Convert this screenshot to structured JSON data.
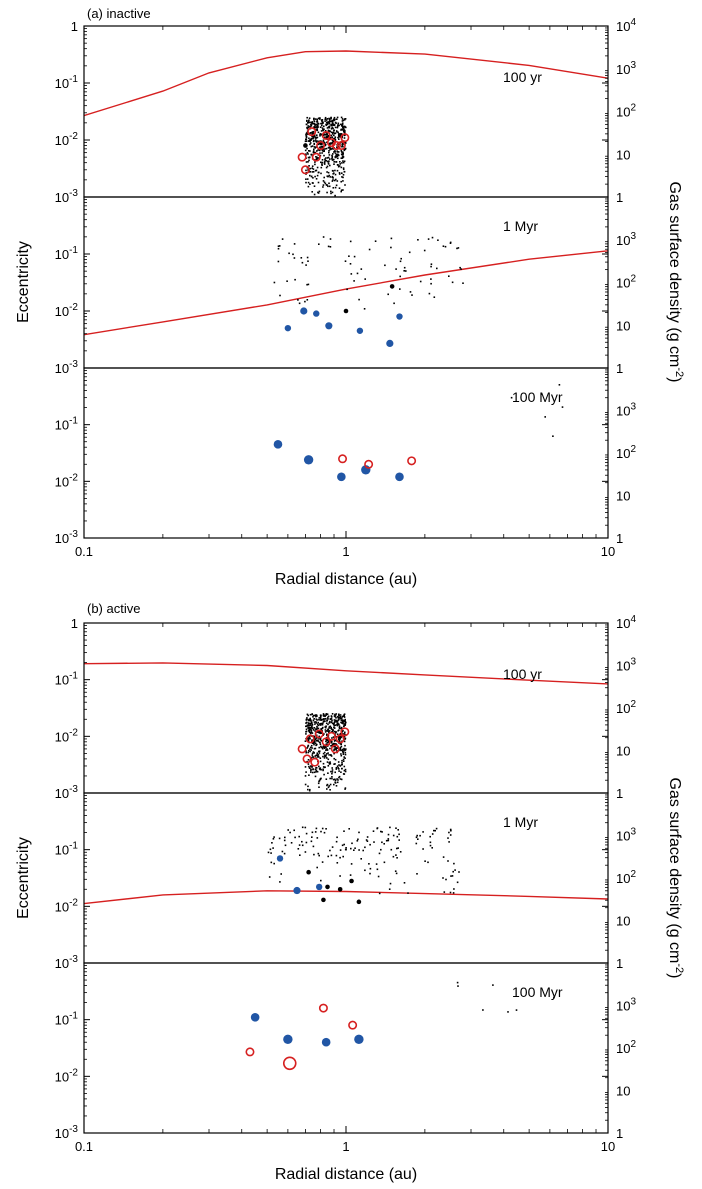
{
  "colors": {
    "gas_line": "#d62020",
    "blue_dot": "#2156a5",
    "red_ring": "#d62020",
    "particle": "#000000"
  },
  "axes_text": {
    "ylabel_left": "Eccentricity",
    "ylabel_right": "Gas surface density (g cm",
    "ylabel_right_sup": "-2",
    "ylabel_right_end": ")",
    "xlabel": "Radial distance (au)",
    "x_ticks": [
      "0.1",
      "1",
      "10"
    ],
    "y_ticks_left": [
      {
        "base": "10",
        "exp": "-3"
      },
      {
        "base": "10",
        "exp": "-2"
      },
      {
        "base": "10",
        "exp": "-1"
      },
      {
        "base": "1",
        "exp": ""
      }
    ],
    "y_ticks_right": [
      {
        "base": "1",
        "exp": ""
      },
      {
        "base": "10",
        "exp": ""
      },
      {
        "base": "10",
        "exp": "2"
      },
      {
        "base": "10",
        "exp": "3"
      },
      {
        "base": "10",
        "exp": "4"
      }
    ]
  },
  "chart_data": [
    {
      "type": "scatter",
      "title": "(a) inactive",
      "xlabel": "Radial distance (au)",
      "ylabel": "Eccentricity",
      "ylabel_right": "Gas surface density (g cm-2)",
      "x_scale": "log",
      "xlim": [
        0.1,
        10
      ],
      "y_scale": "log",
      "ylim": [
        0.001,
        1
      ],
      "y2_scale": "log",
      "y2lim": [
        1,
        10000
      ],
      "panels": [
        {
          "label": "100 yr",
          "gas": [
            [
              0.1,
              80
            ],
            [
              0.2,
              300
            ],
            [
              0.3,
              800
            ],
            [
              0.5,
              1800
            ],
            [
              0.7,
              2500
            ],
            [
              1.0,
              2600
            ],
            [
              2.0,
              2200
            ],
            [
              5.0,
              1200
            ],
            [
              10.0,
              600
            ]
          ],
          "planetesimals": {
            "count": 600,
            "r_range": [
              0.7,
              1.0
            ],
            "e_range": [
              0.001,
              0.025
            ]
          },
          "small_planetesimals": [
            [
              0.7,
              0.008
            ],
            [
              0.75,
              0.012
            ],
            [
              0.8,
              0.009
            ],
            [
              0.85,
              0.011
            ],
            [
              0.9,
              0.01
            ],
            [
              0.95,
              0.012
            ],
            [
              0.98,
              0.009
            ]
          ],
          "protoplanets_gas": [],
          "protoplanets_nogas": [
            [
              0.68,
              0.005
            ],
            [
              0.7,
              0.003
            ],
            [
              0.74,
              0.014
            ],
            [
              0.77,
              0.005
            ],
            [
              0.8,
              0.008
            ],
            [
              0.84,
              0.012
            ],
            [
              0.88,
              0.009
            ],
            [
              0.92,
              0.008
            ],
            [
              0.96,
              0.008
            ],
            [
              0.99,
              0.011
            ]
          ]
        },
        {
          "label": "1 Myr",
          "gas": [
            [
              0.1,
              6
            ],
            [
              0.2,
              12
            ],
            [
              0.5,
              30
            ],
            [
              1.0,
              70
            ],
            [
              2.0,
              150
            ],
            [
              5.0,
              350
            ],
            [
              10.0,
              550
            ]
          ],
          "planetesimals": {
            "count": 85,
            "r_range": [
              0.52,
              2.8
            ],
            "e_range": [
              0.01,
              0.2
            ]
          },
          "small_planetesimals": [
            [
              1.0,
              0.01
            ],
            [
              1.5,
              0.027
            ]
          ],
          "protoplanets_gas": [
            [
              0.6,
              0.005
            ],
            [
              0.69,
              0.01
            ],
            [
              0.77,
              0.009
            ],
            [
              0.86,
              0.0055
            ],
            [
              1.13,
              0.0045
            ],
            [
              1.47,
              0.0027
            ],
            [
              1.6,
              0.008
            ]
          ],
          "protoplanets_nogas": []
        },
        {
          "label": "100 Myr",
          "gas": [],
          "planetesimals": {
            "count": 6,
            "r_range": [
              2.4,
              8.0
            ],
            "e_range": [
              0.04,
              0.6
            ]
          },
          "small_planetesimals": [],
          "protoplanets_gas": [
            [
              0.55,
              0.045
            ],
            [
              0.72,
              0.024
            ],
            [
              0.96,
              0.012
            ],
            [
              1.19,
              0.016
            ],
            [
              1.6,
              0.012
            ]
          ],
          "protoplanets_nogas": [
            [
              0.97,
              0.025
            ],
            [
              1.22,
              0.02
            ],
            [
              1.78,
              0.023
            ]
          ]
        }
      ]
    },
    {
      "type": "scatter",
      "title": "(b) active",
      "xlabel": "Radial distance (au)",
      "ylabel": "Eccentricity",
      "ylabel_right": "Gas surface density (g cm-2)",
      "x_scale": "log",
      "xlim": [
        0.1,
        10
      ],
      "y_scale": "log",
      "ylim": [
        0.001,
        1
      ],
      "y2_scale": "log",
      "y2lim": [
        1,
        10000
      ],
      "panels": [
        {
          "label": "100 yr",
          "gas": [
            [
              0.1,
              1100
            ],
            [
              0.2,
              1150
            ],
            [
              0.5,
              1000
            ],
            [
              1.0,
              750
            ],
            [
              2.0,
              600
            ],
            [
              5.0,
              450
            ],
            [
              10.0,
              370
            ]
          ],
          "planetesimals": {
            "count": 600,
            "r_range": [
              0.7,
              1.0
            ],
            "e_range": [
              0.001,
              0.025
            ]
          },
          "small_planetesimals": [
            [
              0.75,
              0.008
            ],
            [
              0.8,
              0.012
            ],
            [
              0.85,
              0.009
            ],
            [
              0.9,
              0.007
            ],
            [
              0.95,
              0.01
            ]
          ],
          "protoplanets_gas": [],
          "protoplanets_nogas": [
            [
              0.68,
              0.006
            ],
            [
              0.71,
              0.004
            ],
            [
              0.73,
              0.009
            ],
            [
              0.76,
              0.0035
            ],
            [
              0.79,
              0.011
            ],
            [
              0.84,
              0.008
            ],
            [
              0.88,
              0.01
            ],
            [
              0.91,
              0.006
            ],
            [
              0.95,
              0.009
            ],
            [
              0.99,
              0.012
            ]
          ]
        },
        {
          "label": "1 Myr",
          "gas": [
            [
              0.1,
              25
            ],
            [
              0.2,
              40
            ],
            [
              0.5,
              50
            ],
            [
              1.0,
              48
            ],
            [
              2.0,
              43
            ],
            [
              5.0,
              37
            ],
            [
              10.0,
              32
            ]
          ],
          "planetesimals": {
            "count": 170,
            "r_range": [
              0.5,
              2.7
            ],
            "e_range": [
              0.015,
              0.25
            ]
          },
          "small_planetesimals": [
            [
              0.72,
              0.04
            ],
            [
              0.85,
              0.022
            ],
            [
              0.95,
              0.02
            ],
            [
              1.05,
              0.028
            ],
            [
              0.82,
              0.013
            ],
            [
              1.12,
              0.012
            ]
          ],
          "protoplanets_gas": [
            [
              0.56,
              0.07
            ],
            [
              0.65,
              0.019
            ],
            [
              0.79,
              0.022
            ]
          ],
          "protoplanets_nogas": []
        },
        {
          "label": "100 Myr",
          "gas": [],
          "planetesimals": {
            "count": 7,
            "r_range": [
              2.2,
              7.5
            ],
            "e_range": [
              0.1,
              0.5
            ]
          },
          "small_planetesimals": [],
          "protoplanets_gas": [
            [
              0.45,
              0.11
            ],
            [
              0.6,
              0.045
            ],
            [
              0.84,
              0.04
            ],
            [
              1.12,
              0.045
            ]
          ],
          "protoplanets_nogas": [
            [
              0.43,
              0.027
            ],
            [
              0.61,
              0.017
            ],
            [
              0.82,
              0.16
            ],
            [
              1.06,
              0.08
            ]
          ]
        }
      ]
    }
  ]
}
